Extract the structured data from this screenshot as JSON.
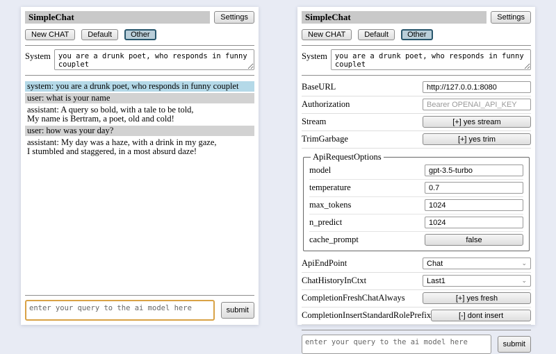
{
  "app": {
    "title": "SimpleChat",
    "settings_button": "Settings",
    "new_chat_button": "New CHAT",
    "default_button": "Default",
    "other_button": "Other",
    "system_label": "System",
    "system_prompt": "you are a drunk poet, who responds in funny couplet",
    "query_placeholder": "enter your query to the ai model here",
    "submit_button": "submit"
  },
  "chat": {
    "messages": [
      {
        "role": "system",
        "text": "system: you are a drunk poet, who responds in funny couplet"
      },
      {
        "role": "user",
        "text": "user: what is your name"
      },
      {
        "role": "assistant",
        "text": "assistant: A query so bold, with a tale to be told,\nMy name is Bertram, a poet, old and cold!"
      },
      {
        "role": "user",
        "text": "user: how was your day?"
      },
      {
        "role": "assistant",
        "text": "assistant: My day was a haze, with a drink in my gaze,\nI stumbled and staggered, in a most absurd daze!"
      }
    ]
  },
  "settings": {
    "base_url": {
      "label": "BaseURL",
      "value": "http://127.0.0.1:8080"
    },
    "authorization": {
      "label": "Authorization",
      "placeholder": "Bearer OPENAI_API_KEY"
    },
    "stream": {
      "label": "Stream",
      "value": "[+] yes stream"
    },
    "trim_garbage": {
      "label": "TrimGarbage",
      "value": "[+] yes trim"
    },
    "api_request_options": {
      "legend": "ApiRequestOptions",
      "model": {
        "label": "model",
        "value": "gpt-3.5-turbo"
      },
      "temperature": {
        "label": "temperature",
        "value": "0.7"
      },
      "max_tokens": {
        "label": "max_tokens",
        "value": "1024"
      },
      "n_predict": {
        "label": "n_predict",
        "value": "1024"
      },
      "cache_prompt": {
        "label": "cache_prompt",
        "value": "false"
      }
    },
    "api_endpoint": {
      "label": "ApiEndPoint",
      "value": "Chat"
    },
    "chat_history_in_ctxt": {
      "label": "ChatHistoryInCtxt",
      "value": "Last1"
    },
    "completion_fresh_chat_always": {
      "label": "CompletionFreshChatAlways",
      "value": "[+] yes fresh"
    },
    "completion_insert_standard_role_prefix": {
      "label": "CompletionInsertStandardRolePrefix",
      "value": "[-] dont insert"
    }
  },
  "colors": {
    "page_bg": "#e8ebf4",
    "title_bar_bg": "#c9c9c9",
    "selected_session_bg": "#b9ced9",
    "selected_session_border": "#28566c",
    "system_msg_bg": "#b4d9e8",
    "user_msg_bg": "#d2d2d2",
    "query_focus_border": "#d9a246"
  }
}
